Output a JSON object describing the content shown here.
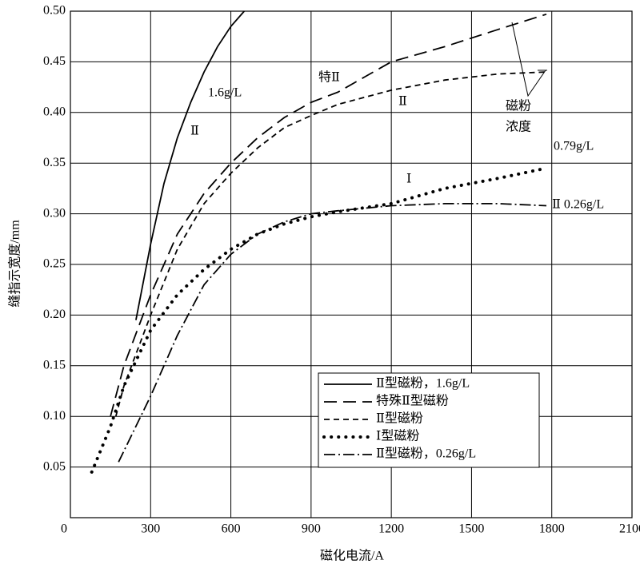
{
  "chart_data": {
    "type": "line",
    "xlabel": "磁化电流/A",
    "ylabel": "缝指示宽度/mm",
    "xlim": [
      0,
      2100
    ],
    "xticks": [
      0,
      300,
      600,
      900,
      1200,
      1500,
      1800,
      2100
    ],
    "ylim": [
      0,
      0.5
    ],
    "yticks": [
      0.05,
      {
        "value": 0.1,
        "label": "0.10"
      },
      0.15,
      {
        "value": 0.2,
        "label": "0.20"
      },
      0.25,
      {
        "value": 0.3,
        "label": "0.30"
      },
      0.35,
      {
        "value": 0.4,
        "label": "0.40"
      },
      0.45,
      {
        "value": 0.5,
        "label": "0.50"
      }
    ],
    "grid": true,
    "legend": "lower right",
    "annotations": [
      "1.6g/L",
      "Ⅱ",
      "特Ⅱ",
      "Ⅱ",
      "磁粉",
      "浓度",
      "0.79g/L",
      "Ⅰ",
      "Ⅱ 0.26g/L"
    ],
    "series": [
      {
        "name": "Ⅱ型磁粉，1.6g/L",
        "color": "#000",
        "dash": "none",
        "x": [
          245,
          300,
          350,
          400,
          450,
          500,
          550,
          600,
          650
        ],
        "values": [
          0.195,
          0.27,
          0.33,
          0.375,
          0.41,
          0.44,
          0.465,
          0.485,
          0.5
        ]
      },
      {
        "name": "特殊Ⅱ型磁粉",
        "color": "#000",
        "dash": "16,8",
        "x": [
          150,
          200,
          300,
          400,
          500,
          600,
          700,
          800,
          900,
          1000,
          1100,
          1200,
          1400,
          1600,
          1780
        ],
        "values": [
          0.1,
          0.15,
          0.22,
          0.28,
          0.32,
          0.35,
          0.375,
          0.395,
          0.41,
          0.42,
          0.435,
          0.45,
          0.465,
          0.482,
          0.497
        ]
      },
      {
        "name": "Ⅱ型磁粉",
        "color": "#000",
        "dash": "7,5",
        "x": [
          170,
          200,
          300,
          400,
          500,
          600,
          700,
          800,
          900,
          1000,
          1200,
          1400,
          1600,
          1780
        ],
        "values": [
          0.1,
          0.13,
          0.2,
          0.265,
          0.31,
          0.34,
          0.365,
          0.385,
          0.397,
          0.408,
          0.422,
          0.432,
          0.438,
          0.44
        ]
      },
      {
        "name": "Ⅰ型磁粉",
        "color": "#000",
        "dash": "0.1,9",
        "x": [
          80,
          150,
          200,
          300,
          400,
          500,
          600,
          700,
          800,
          900,
          1000,
          1200,
          1400,
          1600,
          1780
        ],
        "values": [
          0.045,
          0.09,
          0.13,
          0.185,
          0.22,
          0.245,
          0.265,
          0.28,
          0.29,
          0.297,
          0.302,
          0.31,
          0.325,
          0.335,
          0.345
        ]
      },
      {
        "name": "Ⅱ型磁粉，0.26g/L",
        "color": "#000",
        "dash": "14,4,2,4",
        "x": [
          180,
          300,
          400,
          500,
          600,
          700,
          800,
          900,
          1000,
          1200,
          1400,
          1600,
          1780
        ],
        "values": [
          0.055,
          0.12,
          0.18,
          0.23,
          0.26,
          0.28,
          0.292,
          0.3,
          0.303,
          0.308,
          0.31,
          0.31,
          0.308
        ]
      }
    ]
  }
}
